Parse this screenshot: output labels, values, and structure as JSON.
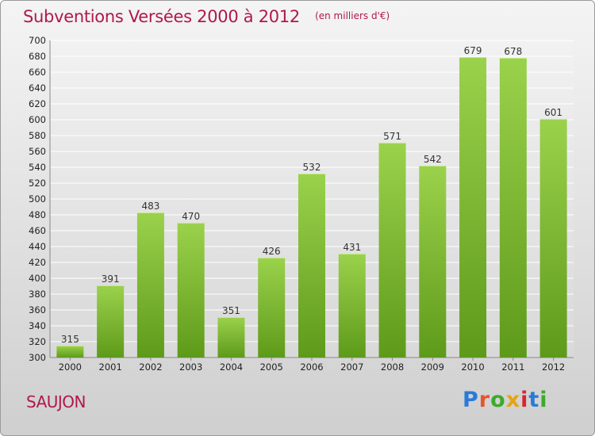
{
  "title": "Subventions Versées 2000 à 2012",
  "unit": "(en milliers d'€)",
  "city": "SAUJON",
  "logo": {
    "text": "Proxiti",
    "letters": [
      "P",
      "r",
      "o",
      "x",
      "i",
      "t",
      "i"
    ],
    "colors": [
      "#2a7bd8",
      "#e8542a",
      "#3bab2b",
      "#e6a314",
      "#d8262f",
      "#2a7bd8",
      "#3bab2b"
    ]
  },
  "colors": {
    "title": "#b0184c",
    "bar_top": "#9bd24c",
    "bar_bottom": "#5e9a1a",
    "grid": "#ffffff"
  },
  "chart_data": {
    "type": "bar",
    "title": "Subventions Versées 2000 à 2012",
    "categories": [
      "2000",
      "2001",
      "2002",
      "2003",
      "2004",
      "2005",
      "2006",
      "2007",
      "2008",
      "2009",
      "2010",
      "2011",
      "2012"
    ],
    "values": [
      315,
      391,
      483,
      470,
      351,
      426,
      532,
      431,
      571,
      542,
      679,
      678,
      601
    ],
    "ylim": [
      300,
      700
    ],
    "yticks": [
      300,
      320,
      340,
      360,
      380,
      400,
      420,
      440,
      460,
      480,
      500,
      520,
      540,
      560,
      580,
      600,
      620,
      640,
      660,
      680,
      700
    ],
    "grid": true,
    "legend": "none"
  }
}
